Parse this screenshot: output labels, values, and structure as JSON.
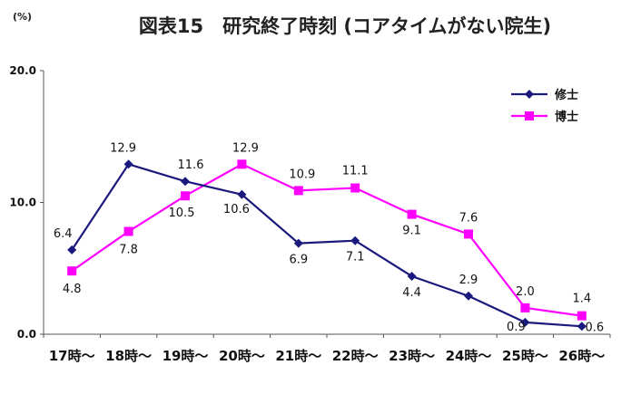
{
  "chart_data": {
    "type": "line",
    "title": "図表15　研究終了時刻 (コアタイムがない院生)",
    "unit_label": "(%)",
    "categories": [
      "17時～",
      "18時～",
      "19時～",
      "20時～",
      "21時～",
      "22時～",
      "23時～",
      "24時～",
      "25時～",
      "26時～"
    ],
    "ylim": [
      0,
      20
    ],
    "yticks": [
      "0.0",
      "10.0",
      "20.0"
    ],
    "grid": false,
    "legend_position": "top-right",
    "series": [
      {
        "name": "修士",
        "color": "#1a1a7e",
        "marker": "diamond",
        "values": [
          6.4,
          12.9,
          11.6,
          10.6,
          6.9,
          7.1,
          4.4,
          2.9,
          0.9,
          0.6
        ],
        "labels": [
          "6.4",
          "12.9",
          "11.6",
          "10.6",
          "6.9",
          "7.1",
          "4.4",
          "2.9",
          "0.9",
          "0.6"
        ]
      },
      {
        "name": "博士",
        "color": "#ff00ff",
        "marker": "square",
        "values": [
          4.8,
          7.8,
          10.5,
          12.9,
          10.9,
          11.1,
          9.1,
          7.6,
          2.0,
          1.4
        ],
        "labels": [
          "4.8",
          "7.8",
          "10.5",
          "12.9",
          "10.9",
          "11.1",
          "9.1",
          "7.6",
          "2.0",
          "1.4"
        ]
      }
    ]
  }
}
